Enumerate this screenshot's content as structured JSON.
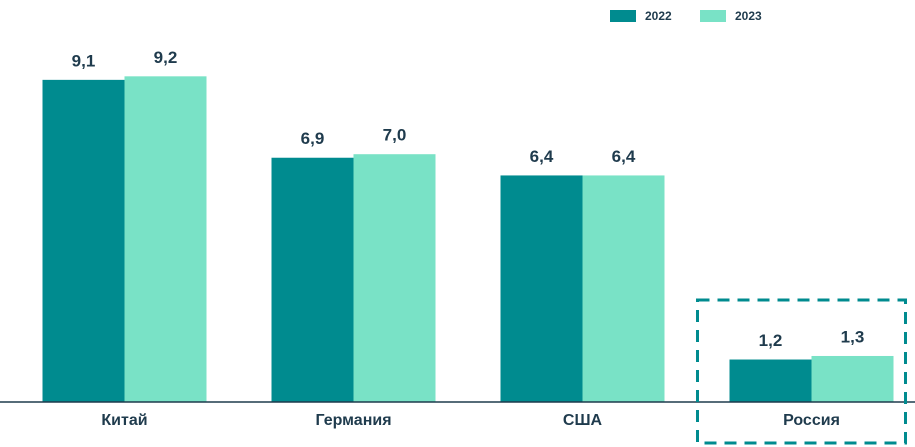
{
  "chart_data": {
    "type": "bar",
    "categories": [
      "Китай",
      "Германия",
      "США",
      "Россия"
    ],
    "series": [
      {
        "name": "2022",
        "color": "#008b8f",
        "values": [
          9.1,
          6.9,
          6.4,
          1.2
        ],
        "value_labels": [
          "9,1",
          "6,9",
          "6,4",
          "1,2"
        ]
      },
      {
        "name": "2023",
        "color": "#79e2c6",
        "values": [
          9.2,
          7.0,
          6.4,
          1.3
        ],
        "value_labels": [
          "9,2",
          "7,0",
          "6,4",
          "1,3"
        ]
      }
    ],
    "ylim": [
      0,
      10
    ],
    "legend": "top-right"
  }
}
